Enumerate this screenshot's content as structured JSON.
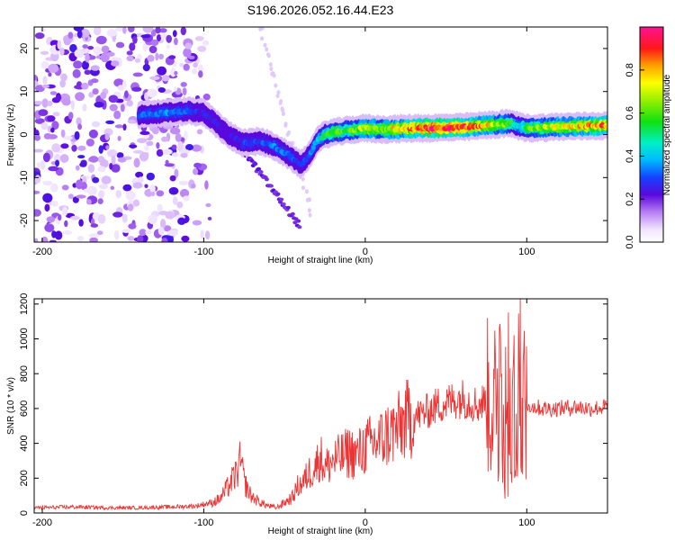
{
  "chart_data": [
    {
      "type": "heatmap",
      "title": "S196.2026.052.16.44.E23",
      "xlabel": "Height of straight line (km)",
      "ylabel": "Frequency (Hz)",
      "xlim": [
        -205,
        150
      ],
      "ylim": [
        -25,
        25
      ],
      "xticks": [
        -200,
        -100,
        0,
        100
      ],
      "yticks": [
        -20,
        -10,
        0,
        10,
        20
      ],
      "xtick_labels": [
        "-200",
        "-100",
        "0",
        "100"
      ],
      "ytick_labels": [
        "-20",
        "-10",
        "0",
        "10",
        "20"
      ],
      "colorbar": {
        "label": "Normalized spectral amplitude",
        "range": [
          0,
          1
        ],
        "ticks": [
          0.0,
          0.2,
          0.4,
          0.6,
          0.8
        ],
        "tick_labels": [
          "0.0",
          "0.2",
          "0.4",
          "0.6",
          "0.8"
        ]
      },
      "ridge": {
        "x": [
          -140,
          -125,
          -110,
          -100,
          -95,
          -85,
          -75,
          -65,
          -55,
          -45,
          -40,
          -35,
          -30,
          -25,
          -20,
          -10,
          0,
          10,
          20,
          30,
          40,
          50,
          60,
          70,
          80,
          90,
          95,
          100,
          110,
          120,
          130,
          140,
          150
        ],
        "freq": [
          4.5,
          5.0,
          5.5,
          5.0,
          3.5,
          0.0,
          -2.0,
          -1.5,
          -3.0,
          -5.5,
          -7.0,
          -5.0,
          -1.5,
          0.0,
          0.5,
          1.0,
          1.5,
          1.2,
          1.3,
          1.5,
          1.5,
          1.6,
          1.7,
          2.0,
          2.3,
          2.6,
          2.0,
          1.5,
          1.6,
          1.8,
          1.9,
          2.0,
          2.1
        ],
        "amplitude": [
          0.3,
          0.35,
          0.3,
          0.25,
          0.25,
          0.2,
          0.3,
          0.28,
          0.35,
          0.3,
          0.25,
          0.3,
          0.4,
          0.5,
          0.6,
          0.55,
          0.7,
          0.65,
          0.75,
          0.85,
          0.95,
          0.95,
          0.9,
          0.8,
          0.7,
          0.55,
          0.4,
          0.6,
          0.65,
          0.7,
          0.75,
          0.8,
          0.85
        ]
      }
    },
    {
      "type": "line",
      "xlabel": "Height of straight line (km)",
      "ylabel": "SNR (10 * v/v)",
      "xlim": [
        -205,
        150
      ],
      "ylim": [
        0,
        1230
      ],
      "xticks": [
        -200,
        -100,
        0,
        100
      ],
      "yticks": [
        0,
        200,
        400,
        600,
        800,
        1000,
        1200
      ],
      "xtick_labels": [
        "-200",
        "-100",
        "0",
        "100"
      ],
      "ytick_labels": [
        "0",
        "200",
        "400",
        "600",
        "800",
        "1000",
        "1200"
      ],
      "series": [
        {
          "name": "SNR",
          "color": "#ee3333",
          "x": [
            -205,
            -180,
            -160,
            -140,
            -120,
            -105,
            -100,
            -95,
            -90,
            -85,
            -80,
            -77,
            -75,
            -72,
            -70,
            -65,
            -60,
            -55,
            -50,
            -45,
            -42,
            -38,
            -35,
            -30,
            -28,
            -25,
            -20,
            -15,
            -10,
            -5,
            0,
            5,
            10,
            15,
            20,
            25,
            30,
            35,
            40,
            45,
            50,
            55,
            60,
            65,
            70,
            75,
            80,
            83,
            86,
            89,
            92,
            95,
            97,
            100,
            105,
            110,
            120,
            130,
            140,
            150
          ],
          "y": [
            30,
            35,
            30,
            30,
            35,
            40,
            50,
            60,
            80,
            150,
            220,
            300,
            180,
            120,
            90,
            60,
            40,
            30,
            60,
            90,
            150,
            180,
            230,
            280,
            330,
            260,
            300,
            320,
            350,
            330,
            380,
            400,
            420,
            460,
            480,
            530,
            550,
            570,
            590,
            620,
            630,
            650,
            660,
            640,
            620,
            650,
            620,
            700,
            560,
            720,
            600,
            900,
            660,
            620,
            610,
            600,
            600,
            610,
            600,
            610
          ]
        }
      ]
    }
  ]
}
